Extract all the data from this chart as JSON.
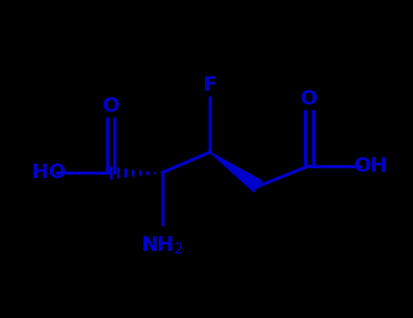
{
  "background_color": "#000000",
  "bond_color": "#0000CD",
  "figure_width": 4.55,
  "figure_height": 3.5,
  "dpi": 100,
  "xlim": [
    0.5,
    6.5
  ],
  "ylim": [
    0.5,
    3.5
  ]
}
